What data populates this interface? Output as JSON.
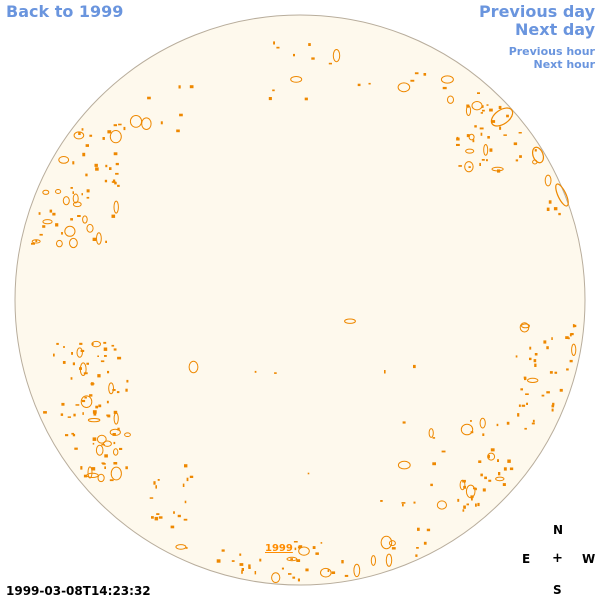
{
  "nav": {
    "back": "Back to 1999",
    "prev_day": "Previous day",
    "next_day": "Next day",
    "prev_hour": "Previous hour",
    "next_hour": "Next hour"
  },
  "disk": {
    "year_link": "1999",
    "fill_color": "#fef9ed",
    "edge_color": "#b8ad9c",
    "feature_color": "#ee8800"
  },
  "compass": {
    "n": "N",
    "e": "E",
    "center": "+",
    "w": "W",
    "s": "S"
  },
  "timestamp": "1999-03-08T14:23:32"
}
